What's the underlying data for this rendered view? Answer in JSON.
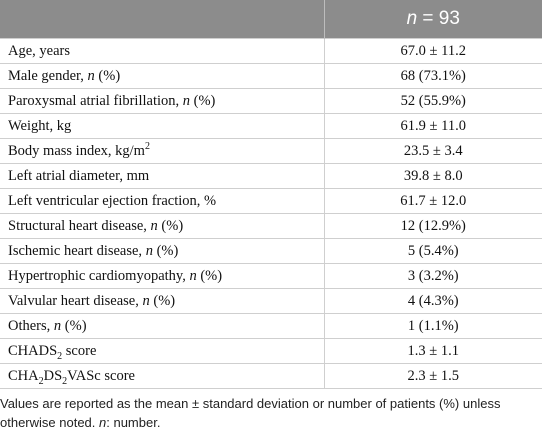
{
  "header": {
    "corner": "",
    "n_label": "n",
    "n_eq": " = 93"
  },
  "rows": [
    {
      "label": "Age, years",
      "value": "67.0 ± 11.2"
    },
    {
      "label": "Male gender, ",
      "italic": "n",
      "after": " (%)",
      "value": "68 (73.1%)"
    },
    {
      "label": "Paroxysmal atrial fibrillation, ",
      "italic": "n",
      "after": " (%)",
      "value": "52 (55.9%)"
    },
    {
      "label": "Weight, kg",
      "value": "61.9 ± 11.0"
    },
    {
      "label": "Body mass index, kg/m",
      "sup": "2",
      "value": "23.5 ± 3.4"
    },
    {
      "label": "Left atrial diameter, mm",
      "value": "39.8 ± 8.0"
    },
    {
      "label": "Left ventricular ejection fraction, %",
      "value": "61.7 ± 12.0"
    },
    {
      "label": "Structural heart disease, ",
      "italic": "n",
      "after": " (%)",
      "value": "12 (12.9%)"
    },
    {
      "label": "Ischemic heart disease, ",
      "italic": "n",
      "after": " (%)",
      "value": "5 (5.4%)"
    },
    {
      "label": "Hypertrophic cardiomyopathy, ",
      "italic": "n",
      "after": " (%)",
      "value": "3 (3.2%)"
    },
    {
      "label": "Valvular heart disease, ",
      "italic": "n",
      "after": " (%)",
      "value": "4 (4.3%)"
    },
    {
      "label": "Others, ",
      "italic": "n",
      "after": " (%)",
      "value": "1 (1.1%)"
    },
    {
      "label": "CHADS",
      "sub1": "2",
      "after": " score",
      "value": "1.3 ± 1.1"
    },
    {
      "label": "CHA",
      "sub1": "2",
      "mid": "DS",
      "sub2": "2",
      "after": "VASc score",
      "value": "2.3 ± 1.5"
    }
  ],
  "footnote": {
    "text": "Values are reported as the mean ± standard deviation or number of patients (%) unless otherwise noted. ",
    "italic": "n",
    "after": ": number."
  }
}
